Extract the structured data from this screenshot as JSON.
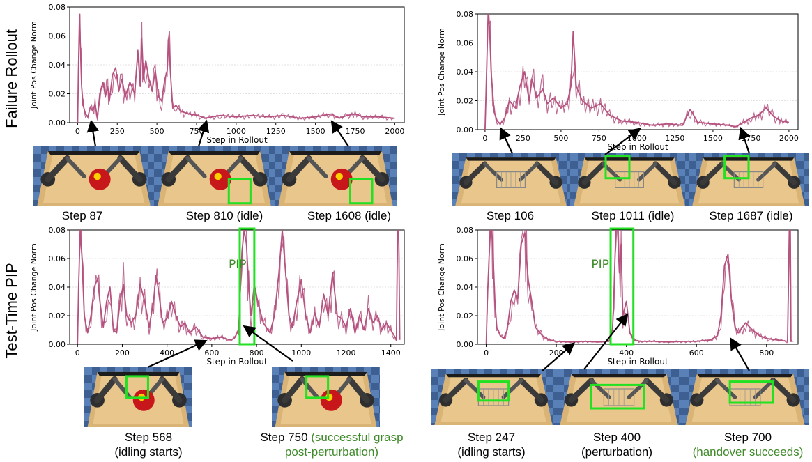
{
  "row_labels": {
    "top": "Failure  Rollout",
    "bottom": "Test-Time PIP"
  },
  "colors": {
    "line": "#b5527f",
    "highlight": "#22e022",
    "grid": "#d9d9d9",
    "accent_text": "#3f8a2a"
  },
  "chart_data": [
    {
      "type": "line",
      "id": "top-left",
      "xlabel": "Step in Rollout",
      "ylabel": "Joint Pos Change Norm",
      "xlim": [
        -50,
        2060
      ],
      "ylim": [
        0,
        0.08
      ],
      "xticks": [
        0,
        250,
        500,
        750,
        1000,
        1250,
        1500,
        1750,
        2000
      ],
      "yticks": [
        "0.00",
        "0.02",
        "0.04",
        "0.06",
        "0.08"
      ],
      "series": [
        {
          "x": [
            0,
            5,
            12,
            18,
            25,
            35,
            50,
            65,
            80,
            95,
            110,
            125,
            140,
            160,
            175,
            190,
            200,
            220,
            240,
            260,
            280,
            300,
            330,
            360,
            380,
            395,
            405,
            415,
            430,
            450,
            470,
            490,
            510,
            530,
            550,
            565,
            575,
            585,
            600,
            620,
            650,
            700,
            760,
            800,
            900,
            1000,
            1100,
            1200,
            1300,
            1400,
            1500,
            1600,
            1650,
            1700,
            1750,
            1800,
            1900,
            2000
          ],
          "y": [
            0,
            0.035,
            0.075,
            0.05,
            0.025,
            0.012,
            0.006,
            0.004,
            0.011,
            0.008,
            0.013,
            0.003,
            0.02,
            0.028,
            0.018,
            0.025,
            0.015,
            0.033,
            0.038,
            0.022,
            0.03,
            0.018,
            0.028,
            0.02,
            0.05,
            0.025,
            0.058,
            0.03,
            0.043,
            0.03,
            0.022,
            0.036,
            0.018,
            0.015,
            0.03,
            0.036,
            0.058,
            0.035,
            0.01,
            0.012,
            0.008,
            0.006,
            0.005,
            0.003,
            0.005,
            0.004,
            0.005,
            0.004,
            0.005,
            0.003,
            0.004,
            0.006,
            0.003,
            0.005,
            0.006,
            0.004,
            0.004,
            0.003
          ]
        }
      ],
      "arrows": [
        87,
        810,
        1608
      ],
      "annotations": []
    },
    {
      "type": "line",
      "id": "top-right",
      "xlabel": "Step in Rollout",
      "ylabel": "Joint Pos Change Norm",
      "xlim": [
        -50,
        2060
      ],
      "ylim": [
        0,
        0.08
      ],
      "xticks": [
        0,
        250,
        500,
        750,
        1000,
        1250,
        1500,
        1750,
        2000
      ],
      "yticks": [
        "0.00",
        "0.02",
        "0.04",
        "0.06",
        "0.08"
      ],
      "series": [
        {
          "x": [
            0,
            10,
            20,
            30,
            40,
            60,
            80,
            100,
            130,
            160,
            200,
            230,
            260,
            290,
            310,
            340,
            380,
            410,
            450,
            500,
            540,
            565,
            580,
            600,
            640,
            700,
            760,
            820,
            900,
            1000,
            1100,
            1200,
            1300,
            1350,
            1400,
            1500,
            1600,
            1650,
            1700,
            1750,
            1800,
            1850,
            1900,
            1950,
            2000
          ],
          "y": [
            0,
            0.04,
            0.085,
            0.07,
            0.04,
            0.012,
            0.006,
            0.004,
            0.008,
            0.02,
            0.015,
            0.03,
            0.04,
            0.02,
            0.035,
            0.022,
            0.028,
            0.018,
            0.022,
            0.015,
            0.018,
            0.03,
            0.068,
            0.03,
            0.02,
            0.015,
            0.018,
            0.01,
            0.006,
            0.005,
            0.003,
            0.004,
            0.003,
            0.014,
            0.005,
            0.004,
            0.003,
            0.002,
            0.005,
            0.008,
            0.01,
            0.015,
            0.009,
            0.006,
            0.005
          ]
        }
      ],
      "arrows": [
        106,
        1011,
        1687
      ],
      "annotations": []
    },
    {
      "type": "line",
      "id": "bottom-left",
      "xlabel": "Step in Rollout",
      "ylabel": "Joint Pos Change Norm",
      "xlim": [
        -35,
        1460
      ],
      "ylim": [
        0,
        0.08
      ],
      "xticks": [
        0,
        200,
        400,
        600,
        800,
        1000,
        1200,
        1400
      ],
      "yticks": [
        "0.00",
        "0.02",
        "0.04",
        "0.06",
        "0.08"
      ],
      "series": [
        {
          "x": [
            0,
            5,
            12,
            20,
            30,
            45,
            60,
            75,
            90,
            100,
            115,
            130,
            145,
            160,
            175,
            190,
            205,
            220,
            240,
            260,
            280,
            300,
            320,
            340,
            350,
            360,
            380,
            400,
            420,
            440,
            460,
            480,
            500,
            530,
            560,
            600,
            640,
            680,
            700,
            720,
            735,
            745,
            755,
            765,
            775,
            790,
            805,
            830,
            860,
            880,
            900,
            915,
            930,
            945,
            960,
            980,
            1000,
            1020,
            1040,
            1060,
            1080,
            1100,
            1120,
            1140,
            1160,
            1180,
            1200,
            1220,
            1240,
            1260,
            1280,
            1300,
            1320,
            1340,
            1360,
            1380,
            1400,
            1415,
            1425,
            1430,
            1435,
            1440
          ],
          "y": [
            0,
            0.04,
            0.08,
            0.06,
            0.02,
            0.008,
            0.02,
            0.04,
            0.046,
            0.03,
            0.012,
            0.03,
            0.04,
            0.01,
            0.008,
            0.03,
            0.042,
            0.02,
            0.015,
            0.02,
            0.042,
            0.03,
            0.012,
            0.03,
            0.048,
            0.04,
            0.015,
            0.018,
            0.03,
            0.02,
            0.012,
            0.015,
            0.008,
            0.012,
            0.005,
            0.004,
            0.005,
            0.003,
            0.004,
            0.01,
            0.065,
            0.085,
            0.07,
            0.04,
            0.02,
            0.042,
            0.03,
            0.015,
            0.008,
            0.02,
            0.05,
            0.085,
            0.05,
            0.02,
            0.012,
            0.03,
            0.045,
            0.02,
            0.008,
            0.022,
            0.012,
            0.035,
            0.02,
            0.05,
            0.02,
            0.018,
            0.012,
            0.025,
            0.008,
            0.02,
            0.01,
            0.025,
            0.015,
            0.02,
            0.01,
            0.015,
            0.01,
            0.006,
            0.003,
            0.08,
            0.08,
            0.003
          ]
        }
      ],
      "arrows": [
        568,
        750
      ],
      "annotations": [
        {
          "text": "PIP"
        }
      ]
    },
    {
      "type": "line",
      "id": "bottom-right",
      "xlabel": "Step in Rollout",
      "ylabel": "Joint Pos Change Norm",
      "xlim": [
        -25,
        890
      ],
      "ylim": [
        0,
        0.08
      ],
      "xticks": [
        0,
        200,
        400,
        600,
        800
      ],
      "yticks": [
        "0.00",
        "0.02",
        "0.04",
        "0.06",
        "0.08"
      ],
      "series": [
        {
          "x": [
            0,
            3,
            8,
            12,
            16,
            20,
            25,
            30,
            40,
            50,
            60,
            70,
            80,
            90,
            100,
            110,
            115,
            120,
            130,
            140,
            160,
            180,
            200,
            240,
            280,
            320,
            350,
            360,
            365,
            370,
            375,
            380,
            385,
            390,
            400,
            410,
            420,
            440,
            480,
            520,
            560,
            600,
            640,
            660,
            670,
            680,
            690,
            700,
            710,
            720,
            740,
            760,
            780,
            800,
            830,
            860,
            865,
            868,
            870,
            875
          ],
          "y": [
            0,
            0.03,
            0.06,
            0.085,
            0.085,
            0.06,
            0.03,
            0.012,
            0.006,
            0.004,
            0.01,
            0.03,
            0.038,
            0.032,
            0.07,
            0.078,
            0.06,
            0.045,
            0.03,
            0.012,
            0.006,
            0.003,
            0.002,
            0.0015,
            0.002,
            0.0015,
            0.002,
            0.008,
            0.04,
            0.085,
            0.085,
            0.05,
            0.07,
            0.02,
            0.03,
            0.008,
            0.003,
            0.002,
            0.002,
            0.0015,
            0.002,
            0.002,
            0.003,
            0.006,
            0.02,
            0.055,
            0.063,
            0.03,
            0.012,
            0.008,
            0.015,
            0.01,
            0.006,
            0.004,
            0.003,
            0.002,
            0.08,
            0.08,
            0.002,
            0.002
          ]
        }
      ],
      "arrows": [
        247,
        400,
        700
      ],
      "annotations": [
        {
          "text": "PIP"
        }
      ]
    }
  ],
  "captions": {
    "top_left": [
      {
        "line1": "Step 87"
      },
      {
        "line1": "Step 810 (idle)"
      },
      {
        "line1": "Step 1608 (idle)"
      }
    ],
    "top_right": [
      {
        "line1": "Step 106"
      },
      {
        "line1": "Step 1011 (idle)"
      },
      {
        "line1": "Step 1687 (idle)"
      }
    ],
    "bottom_left": [
      {
        "line1": "Step 568",
        "line2": "(idling starts)"
      },
      {
        "line1_plain": "Step 750 ",
        "line1_green": "(successful grasp",
        "line2_green": "post-perturbation)"
      }
    ],
    "bottom_right": [
      {
        "line1": "Step 247",
        "line2": "(idling starts)"
      },
      {
        "line1": "Step 400",
        "line2": "(perturbation)"
      },
      {
        "line1": "Step 700",
        "line2_green": "(handover succeeds)"
      }
    ]
  }
}
